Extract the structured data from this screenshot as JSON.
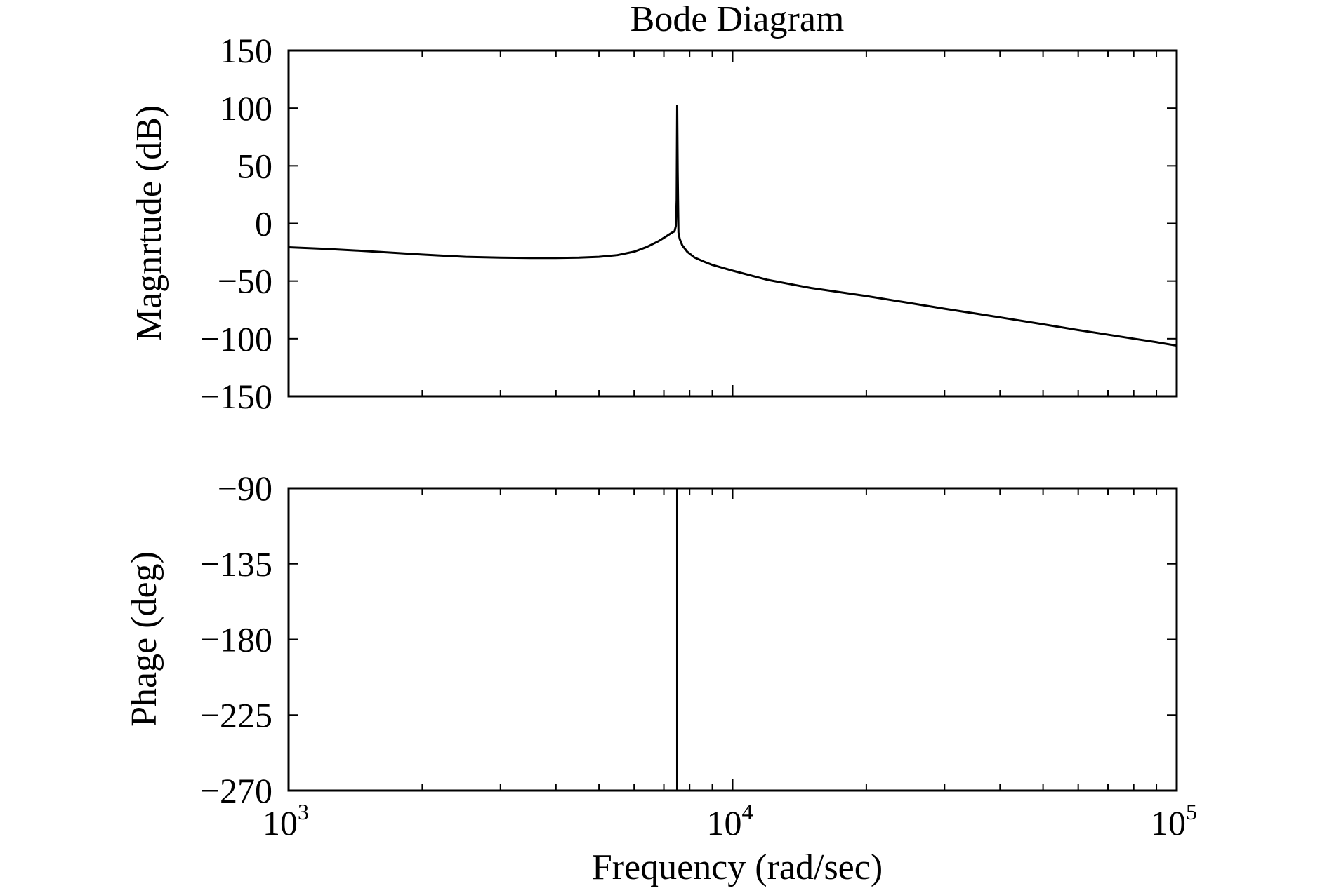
{
  "chart_data": {
    "type": "line",
    "title": "Bode Diagram",
    "x_axis": {
      "label": "Frequency (rad/sec)",
      "scale": "log",
      "range": [
        1000,
        100000
      ],
      "ticks": [
        {
          "value": 1000,
          "base": "10",
          "exp": "3"
        },
        {
          "value": 10000,
          "base": "10",
          "exp": "4"
        },
        {
          "value": 100000,
          "base": "10",
          "exp": "5"
        }
      ]
    },
    "panels": [
      {
        "name": "magnitude",
        "ylabel": "Magnrtude (dB)",
        "ylim": [
          -150,
          150
        ],
        "ytick_labels": [
          "150",
          "100",
          "50",
          "0",
          "−50",
          "−100",
          "−150"
        ],
        "ytick_values": [
          150,
          100,
          50,
          0,
          -50,
          -100,
          -150
        ],
        "series": [
          {
            "x": [
              1000,
              1200,
              1500,
              2000,
              2500,
              3000,
              3500,
              4000,
              4500,
              5000,
              5500,
              6000,
              6400,
              6800,
              7100,
              7300,
              7400,
              7450,
              7480,
              7500,
              7520,
              7550,
              7600,
              7700,
              7900,
              8200,
              8600,
              9000,
              10000,
              12000,
              15000,
              20000,
              25000,
              30000,
              40000,
              50000,
              60000,
              70000,
              80000,
              90000,
              100000
            ],
            "y": [
              -20.7,
              -22,
              -24,
              -27,
              -29,
              -29.7,
              -30,
              -30,
              -29.7,
              -29,
              -27.5,
              -24.5,
              -20.5,
              -15.5,
              -11,
              -8,
              -6.8,
              -2,
              20,
              103,
              45,
              -8,
              -13.5,
              -19,
              -24.5,
              -29.5,
              -33,
              -36,
              -41,
              -49,
              -56,
              -63,
              -69,
              -74,
              -81.5,
              -87.5,
              -92.5,
              -96.5,
              -100,
              -103,
              -106
            ]
          }
        ]
      },
      {
        "name": "phase",
        "ylabel": "Phage (deg)",
        "ylim": [
          -270,
          -90
        ],
        "ytick_labels": [
          "−90",
          "−135",
          "−180",
          "−225",
          "−270"
        ],
        "ytick_values": [
          -90,
          -135,
          -180,
          -225,
          -270
        ],
        "series": [
          {
            "x": [
              1000,
              7500,
              7500,
              100000
            ],
            "y": [
              -90,
              -90,
              -270,
              -270
            ]
          }
        ]
      }
    ]
  }
}
